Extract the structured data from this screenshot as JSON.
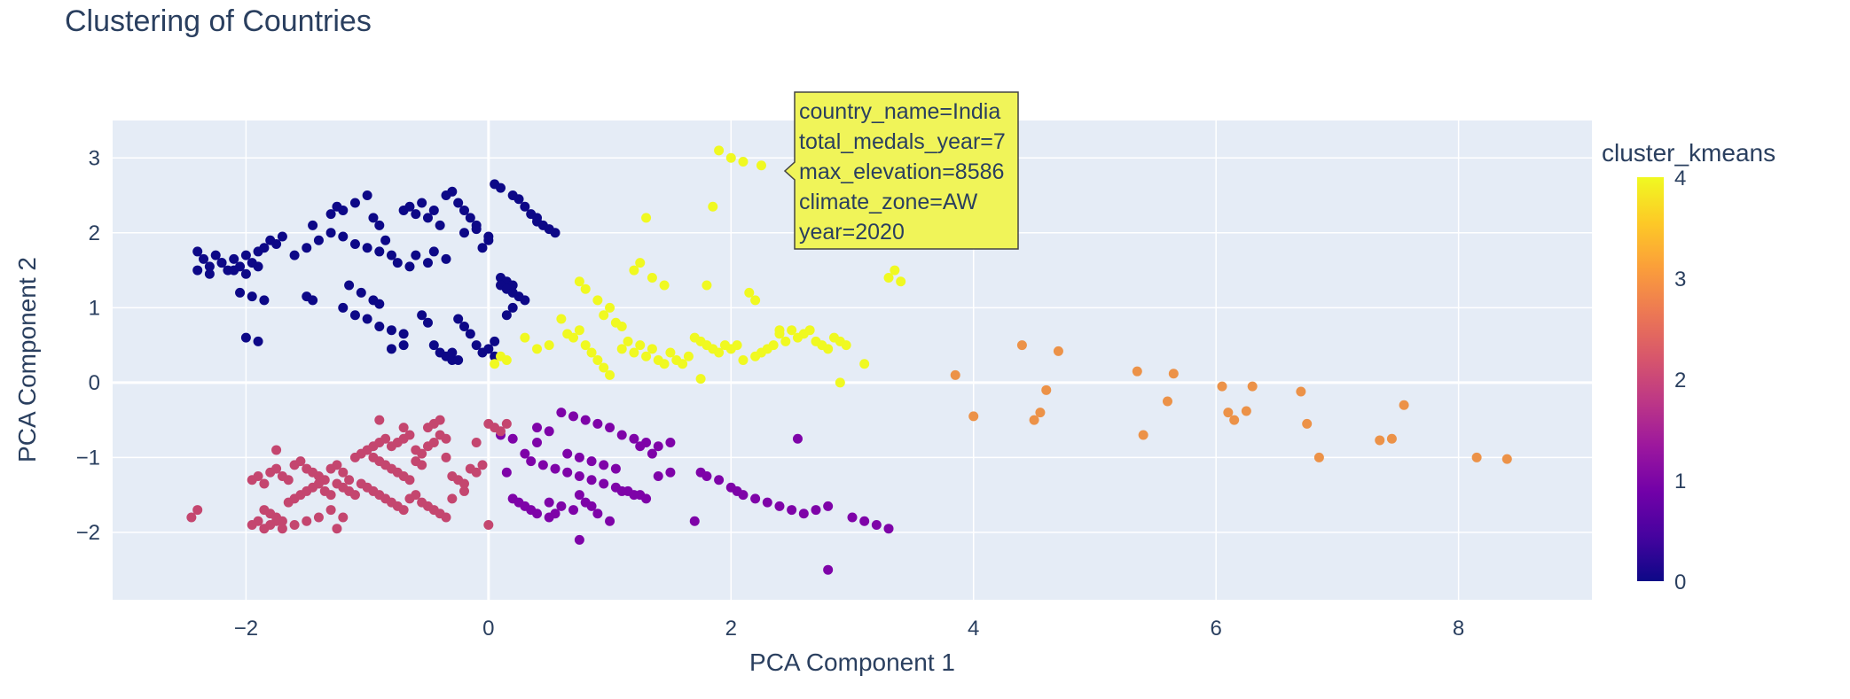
{
  "chart_data": {
    "type": "scatter",
    "title": "Clustering of Countries",
    "xlabel": "PCA Component 1",
    "ylabel": "PCA Component 2",
    "xlim": [
      -3.1,
      9.1
    ],
    "ylim": [
      -2.9,
      3.5
    ],
    "xticks": [
      -2,
      0,
      2,
      4,
      6,
      8
    ],
    "xtick_labels": [
      "−2",
      "0",
      "2",
      "4",
      "6",
      "8"
    ],
    "yticks": [
      -2,
      -1,
      0,
      1,
      2,
      3
    ],
    "ytick_labels": [
      "−2",
      "−1",
      "0",
      "1",
      "2",
      "3"
    ],
    "grid": true,
    "colorbar": {
      "title": "cluster_kmeans",
      "min": 0,
      "max": 4,
      "ticks": [
        0,
        1,
        2,
        3,
        4
      ],
      "tick_labels": [
        "0",
        "1",
        "2",
        "3",
        "4"
      ],
      "colorscale": [
        "#0d0887",
        "#46039f",
        "#7201a8",
        "#9c179e",
        "#bd3786",
        "#d8576b",
        "#ed7953",
        "#fb9f3a",
        "#fdca26",
        "#f0f921"
      ]
    },
    "clusters": [
      {
        "cluster": 0,
        "color": "#0d0887",
        "x": [
          -2.4,
          -2.35,
          -2.3,
          -2.25,
          -2.2,
          -2.15,
          -2.1,
          -2.05,
          -2.0,
          -1.95,
          -1.9,
          -1.85,
          -2.4,
          -2.3,
          -2.2,
          -2.1,
          -2.0,
          -1.9,
          -1.8,
          -1.75,
          -1.7,
          -2.05,
          -1.95,
          -1.85,
          -2.0,
          -1.9,
          -1.6,
          -1.5,
          -1.45,
          -1.4,
          -1.2,
          -1.1,
          -1.0,
          -0.95,
          -0.9,
          -0.85,
          -0.8,
          -0.75,
          -1.15,
          -1.05,
          -0.95,
          -0.9,
          -1.3,
          -1.2,
          -1.1,
          -1.0,
          -0.9,
          -0.7,
          -0.65,
          -0.6,
          -0.55,
          -0.5,
          -0.45,
          -0.4,
          -0.35,
          -0.3,
          -0.25,
          -0.2,
          -0.15,
          -0.1,
          -0.05,
          0.0,
          0.05,
          0.1,
          0.2,
          0.25,
          0.3,
          0.35,
          0.4,
          0.45,
          0.5,
          0.55,
          -0.55,
          -0.5,
          -0.45,
          -0.4,
          -0.35,
          -0.3,
          -0.25,
          -0.2,
          -0.15,
          -0.1,
          -0.05,
          0.0,
          0.05,
          0.1,
          0.15,
          0.2,
          -1.5,
          -1.45,
          -1.2,
          -1.1,
          -1.0,
          -0.9,
          -0.8,
          -0.7,
          0.1,
          0.15,
          0.2,
          0.25,
          0.3,
          -0.2,
          -0.1,
          0.0,
          -0.6,
          -0.5,
          -0.7,
          -0.8,
          -1.25,
          -1.3,
          -0.35,
          -0.45,
          -0.65,
          -0.3,
          -0.25,
          0.05,
          0.15,
          0.4,
          0.2
        ],
        "y": [
          1.75,
          1.65,
          1.55,
          1.7,
          1.6,
          1.5,
          1.65,
          1.55,
          1.7,
          1.6,
          1.75,
          1.8,
          1.5,
          1.45,
          1.6,
          1.5,
          1.45,
          1.55,
          1.9,
          1.85,
          1.95,
          1.2,
          1.15,
          1.1,
          0.6,
          0.55,
          1.7,
          1.8,
          2.1,
          1.9,
          2.3,
          2.4,
          2.5,
          2.2,
          2.1,
          1.9,
          1.7,
          1.6,
          1.3,
          1.2,
          1.1,
          1.05,
          2.0,
          1.95,
          1.85,
          1.8,
          1.75,
          2.3,
          2.35,
          2.25,
          2.4,
          2.2,
          2.3,
          2.1,
          2.5,
          2.55,
          2.4,
          2.3,
          2.2,
          2.1,
          1.8,
          1.9,
          2.65,
          2.6,
          2.5,
          2.45,
          2.35,
          2.25,
          2.15,
          2.1,
          2.05,
          2.0,
          0.9,
          0.8,
          0.5,
          0.4,
          0.35,
          0.3,
          0.85,
          0.75,
          0.65,
          0.5,
          0.4,
          0.45,
          0.55,
          1.4,
          1.35,
          1.3,
          1.15,
          1.1,
          1.0,
          0.9,
          0.85,
          0.75,
          0.7,
          0.65,
          1.3,
          1.25,
          1.2,
          1.15,
          1.1,
          2.0,
          2.05,
          1.95,
          1.7,
          1.6,
          0.5,
          0.45,
          2.35,
          2.25,
          1.65,
          1.75,
          1.55,
          0.4,
          0.3,
          0.35,
          0.9,
          2.2,
          1.0
        ]
      },
      {
        "cluster": 1,
        "color": "#7e03a8",
        "x": [
          0.1,
          0.2,
          0.3,
          0.4,
          0.5,
          0.6,
          0.7,
          0.8,
          0.9,
          1.0,
          1.1,
          1.2,
          1.3,
          1.4,
          1.5,
          0.65,
          0.75,
          0.85,
          0.95,
          1.05,
          0.35,
          0.45,
          0.55,
          0.65,
          0.75,
          0.85,
          0.95,
          1.05,
          1.15,
          1.25,
          0.2,
          0.25,
          0.3,
          0.35,
          0.4,
          0.5,
          0.6,
          0.7,
          0.75,
          0.8,
          0.85,
          0.9,
          1.0,
          1.1,
          1.2,
          1.3,
          1.4,
          1.5,
          1.75,
          1.8,
          1.9,
          2.0,
          2.05,
          2.1,
          2.2,
          2.3,
          2.4,
          2.5,
          2.6,
          2.7,
          2.8,
          3.0,
          3.1,
          3.2,
          3.3,
          2.55,
          2.8,
          1.7,
          0.75,
          0.5,
          0.4,
          0.55,
          0.15,
          1.25,
          1.35
        ],
        "y": [
          -0.7,
          -0.75,
          -0.95,
          -0.6,
          -0.65,
          -0.4,
          -0.45,
          -0.5,
          -0.55,
          -0.6,
          -0.7,
          -0.75,
          -0.8,
          -0.85,
          -0.8,
          -0.95,
          -1.0,
          -1.05,
          -1.1,
          -1.15,
          -1.05,
          -1.1,
          -1.15,
          -1.2,
          -1.25,
          -1.3,
          -1.35,
          -1.4,
          -1.45,
          -1.5,
          -1.55,
          -1.6,
          -1.65,
          -1.7,
          -1.75,
          -1.6,
          -1.65,
          -1.7,
          -1.5,
          -1.6,
          -1.65,
          -1.75,
          -1.85,
          -1.45,
          -1.5,
          -1.55,
          -1.25,
          -1.2,
          -1.2,
          -1.25,
          -1.3,
          -1.4,
          -1.45,
          -1.5,
          -1.55,
          -1.6,
          -1.65,
          -1.7,
          -1.75,
          -1.7,
          -1.65,
          -1.8,
          -1.85,
          -1.9,
          -1.95,
          -0.75,
          -2.5,
          -1.85,
          -2.1,
          -1.8,
          -0.8,
          -1.75,
          -1.2,
          -0.85,
          -0.95
        ]
      },
      {
        "cluster": 2,
        "color": "#c4466f",
        "x": [
          -2.45,
          -2.4,
          -1.95,
          -1.9,
          -1.85,
          -1.8,
          -1.75,
          -1.7,
          -1.65,
          -1.6,
          -1.55,
          -1.5,
          -1.45,
          -1.4,
          -1.35,
          -1.3,
          -1.25,
          -1.2,
          -1.15,
          -1.1,
          -1.05,
          -1.0,
          -0.95,
          -0.9,
          -0.85,
          -0.8,
          -0.75,
          -0.7,
          -0.65,
          -0.6,
          -0.55,
          -0.5,
          -0.45,
          -0.4,
          -0.35,
          -1.85,
          -1.8,
          -1.75,
          -1.7,
          -1.65,
          -1.6,
          -1.55,
          -1.5,
          -1.45,
          -1.4,
          -1.35,
          -1.3,
          -1.25,
          -1.2,
          -1.15,
          -1.1,
          -1.05,
          -1.0,
          -0.95,
          -0.9,
          -0.85,
          -0.8,
          -0.75,
          -0.7,
          -0.65,
          -0.6,
          -0.55,
          -0.5,
          -0.45,
          -0.4,
          -0.35,
          -0.3,
          -0.25,
          -0.2,
          -0.15,
          -0.1,
          -0.05,
          0.0,
          0.05,
          0.1,
          0.15,
          -0.95,
          -0.9,
          -0.85,
          -0.8,
          -0.75,
          -0.7,
          -0.65,
          -0.6,
          -0.55,
          -0.5,
          -0.45,
          -1.95,
          -1.9,
          -1.85,
          -1.8,
          -1.75,
          -1.7,
          -1.6,
          -1.5,
          -1.4,
          -1.25,
          -1.2,
          -0.9,
          -0.4,
          -0.35,
          -0.1,
          0.0,
          -0.3,
          -0.2,
          -1.75,
          -0.7,
          -1.3
        ],
        "y": [
          -1.8,
          -1.7,
          -1.3,
          -1.25,
          -1.35,
          -1.2,
          -1.15,
          -1.25,
          -1.3,
          -1.1,
          -1.05,
          -1.15,
          -1.2,
          -1.25,
          -1.3,
          -1.15,
          -1.1,
          -1.2,
          -1.3,
          -1.0,
          -0.95,
          -0.9,
          -0.85,
          -0.8,
          -0.75,
          -0.85,
          -0.8,
          -0.75,
          -0.7,
          -0.9,
          -0.95,
          -0.85,
          -0.8,
          -0.7,
          -0.75,
          -1.7,
          -1.75,
          -1.8,
          -1.85,
          -1.6,
          -1.55,
          -1.5,
          -1.45,
          -1.4,
          -1.35,
          -1.45,
          -1.5,
          -1.35,
          -1.4,
          -1.45,
          -1.5,
          -1.35,
          -1.4,
          -1.45,
          -1.5,
          -1.55,
          -1.6,
          -1.65,
          -1.7,
          -1.55,
          -1.5,
          -1.6,
          -1.65,
          -1.7,
          -1.75,
          -1.8,
          -1.25,
          -1.3,
          -1.35,
          -1.15,
          -1.2,
          -1.1,
          -0.55,
          -0.6,
          -0.65,
          -0.55,
          -1.0,
          -1.05,
          -1.1,
          -1.15,
          -1.2,
          -1.25,
          -1.3,
          -1.05,
          -1.1,
          -0.6,
          -0.55,
          -1.9,
          -1.85,
          -1.95,
          -1.9,
          -1.85,
          -1.95,
          -1.9,
          -1.85,
          -1.8,
          -1.95,
          -1.8,
          -0.5,
          -0.5,
          -1.0,
          -0.8,
          -1.9,
          -1.55,
          -1.45,
          -0.9,
          -0.6,
          -1.7
        ]
      },
      {
        "cluster": 3,
        "color": "#ec9248",
        "x": [
          3.85,
          4.0,
          4.4,
          4.5,
          4.55,
          4.6,
          4.7,
          5.35,
          5.4,
          5.6,
          5.65,
          6.05,
          6.1,
          6.15,
          6.25,
          6.3,
          6.7,
          6.75,
          6.85,
          7.35,
          7.45,
          7.55,
          8.15,
          8.4
        ],
        "y": [
          0.1,
          -0.45,
          0.5,
          -0.5,
          -0.4,
          -0.1,
          0.42,
          0.15,
          -0.7,
          -0.25,
          0.12,
          -0.05,
          -0.4,
          -0.5,
          -0.38,
          -0.05,
          -0.12,
          -0.55,
          -1.0,
          -0.77,
          -0.75,
          -0.3,
          -1.0,
          -1.02
        ],
        "hover": {
          "country_name": "country_name=India",
          "total_medals_year": "total_medals_year=7",
          "max_elevation": "max_elevation=8586",
          "climate_zone": "climate_zone=AW",
          "year": "year=2020"
        }
      },
      {
        "cluster": 4,
        "color": "#f0f921",
        "x": [
          0.05,
          0.1,
          0.15,
          0.3,
          0.4,
          0.5,
          0.6,
          0.65,
          0.7,
          0.75,
          0.8,
          0.85,
          0.9,
          0.95,
          1.0,
          1.1,
          1.15,
          1.2,
          1.25,
          1.3,
          1.35,
          1.4,
          1.45,
          1.5,
          1.55,
          1.6,
          1.65,
          1.7,
          1.75,
          1.8,
          1.85,
          1.9,
          1.95,
          2.0,
          2.05,
          2.1,
          2.2,
          2.25,
          2.3,
          2.35,
          2.4,
          2.45,
          2.5,
          2.55,
          2.6,
          2.65,
          2.7,
          2.75,
          2.8,
          2.85,
          2.9,
          2.95,
          3.1,
          3.35,
          3.4,
          3.3,
          1.9,
          2.0,
          2.1,
          2.25,
          1.85,
          1.3,
          0.75,
          0.8,
          0.9,
          1.2,
          1.25,
          1.35,
          1.45,
          1.8,
          2.15,
          2.2,
          2.4,
          2.9,
          1.1,
          0.95,
          1.0,
          1.05,
          1.75
        ],
        "y": [
          0.25,
          0.35,
          0.3,
          0.6,
          0.45,
          0.5,
          0.85,
          0.65,
          0.6,
          0.7,
          0.5,
          0.4,
          0.3,
          0.2,
          0.1,
          0.45,
          0.55,
          0.4,
          0.5,
          0.35,
          0.45,
          0.3,
          0.25,
          0.4,
          0.3,
          0.25,
          0.35,
          0.6,
          0.55,
          0.5,
          0.45,
          0.4,
          0.5,
          0.45,
          0.5,
          0.3,
          0.35,
          0.4,
          0.45,
          0.5,
          0.65,
          0.55,
          0.7,
          0.6,
          0.65,
          0.7,
          0.55,
          0.5,
          0.45,
          0.6,
          0.55,
          0.5,
          0.25,
          1.5,
          1.35,
          1.4,
          3.1,
          3.0,
          2.95,
          2.9,
          2.35,
          2.2,
          1.35,
          1.25,
          1.1,
          1.5,
          1.6,
          1.4,
          1.3,
          1.3,
          1.2,
          1.1,
          0.7,
          0.0,
          0.75,
          0.9,
          1.0,
          0.8,
          0.05
        ]
      }
    ],
    "hover_point": {
      "x": 2.4,
      "y": 2.85,
      "cluster": 4
    }
  },
  "hover_label": {
    "lines": [
      "country_name=India",
      "total_medals_year=7",
      "max_elevation=8586",
      "climate_zone=AW",
      "year=2020"
    ],
    "background": "#f0f459"
  }
}
